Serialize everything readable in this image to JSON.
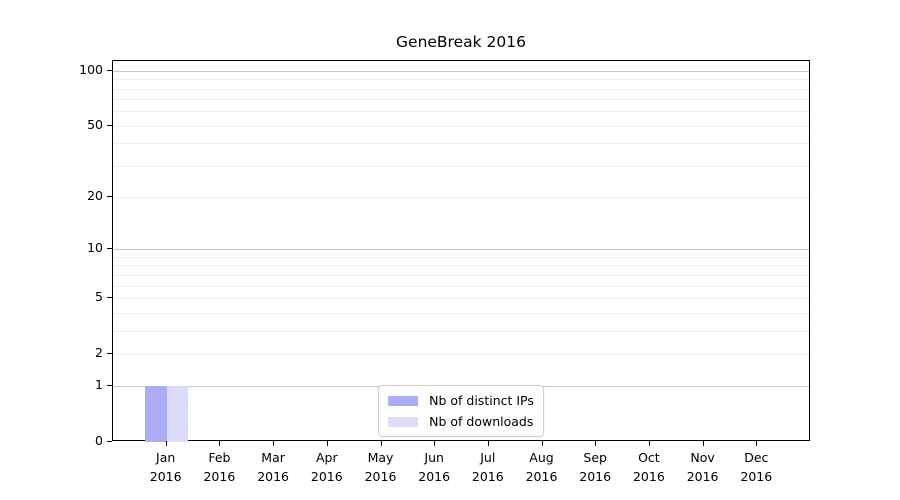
{
  "chart_data": {
    "type": "bar",
    "title": "GeneBreak 2016",
    "year_label": "2016",
    "categories": [
      "Jan",
      "Feb",
      "Mar",
      "Apr",
      "May",
      "Jun",
      "Jul",
      "Aug",
      "Sep",
      "Oct",
      "Nov",
      "Dec"
    ],
    "series": [
      {
        "name": "Nb of distinct IPs",
        "color": "#abacf5",
        "values": [
          1,
          0,
          0,
          0,
          0,
          0,
          0,
          0,
          0,
          0,
          0,
          0
        ]
      },
      {
        "name": "Nb of downloads",
        "color": "#dcdcf9",
        "values": [
          1,
          0,
          0,
          0,
          0,
          0,
          0,
          0,
          0,
          0,
          0,
          0
        ]
      }
    ],
    "yscale": "log1p",
    "ylim": [
      0,
      113
    ],
    "yticks": [
      0,
      1,
      2,
      5,
      10,
      20,
      50,
      100
    ],
    "y_gridlines_major": [
      1,
      10,
      100
    ],
    "y_gridlines_minor": [
      2,
      3,
      4,
      5,
      6,
      7,
      8,
      9,
      20,
      30,
      40,
      50,
      60,
      70,
      80,
      90
    ],
    "grid": "on",
    "legend_position": "lower center",
    "legend": [
      "Nb of distinct IPs",
      "Nb of downloads"
    ]
  },
  "colors": {
    "background": "#ffffff",
    "axis": "#000000",
    "text": "#000000",
    "grid_major": "#c6c6c6",
    "grid_minor": "#ededed",
    "legend_border": "#cccccc",
    "legend_background": "#ffffff",
    "bar_distinct_ips": "#abacf5",
    "bar_downloads": "#dcdcf9"
  }
}
